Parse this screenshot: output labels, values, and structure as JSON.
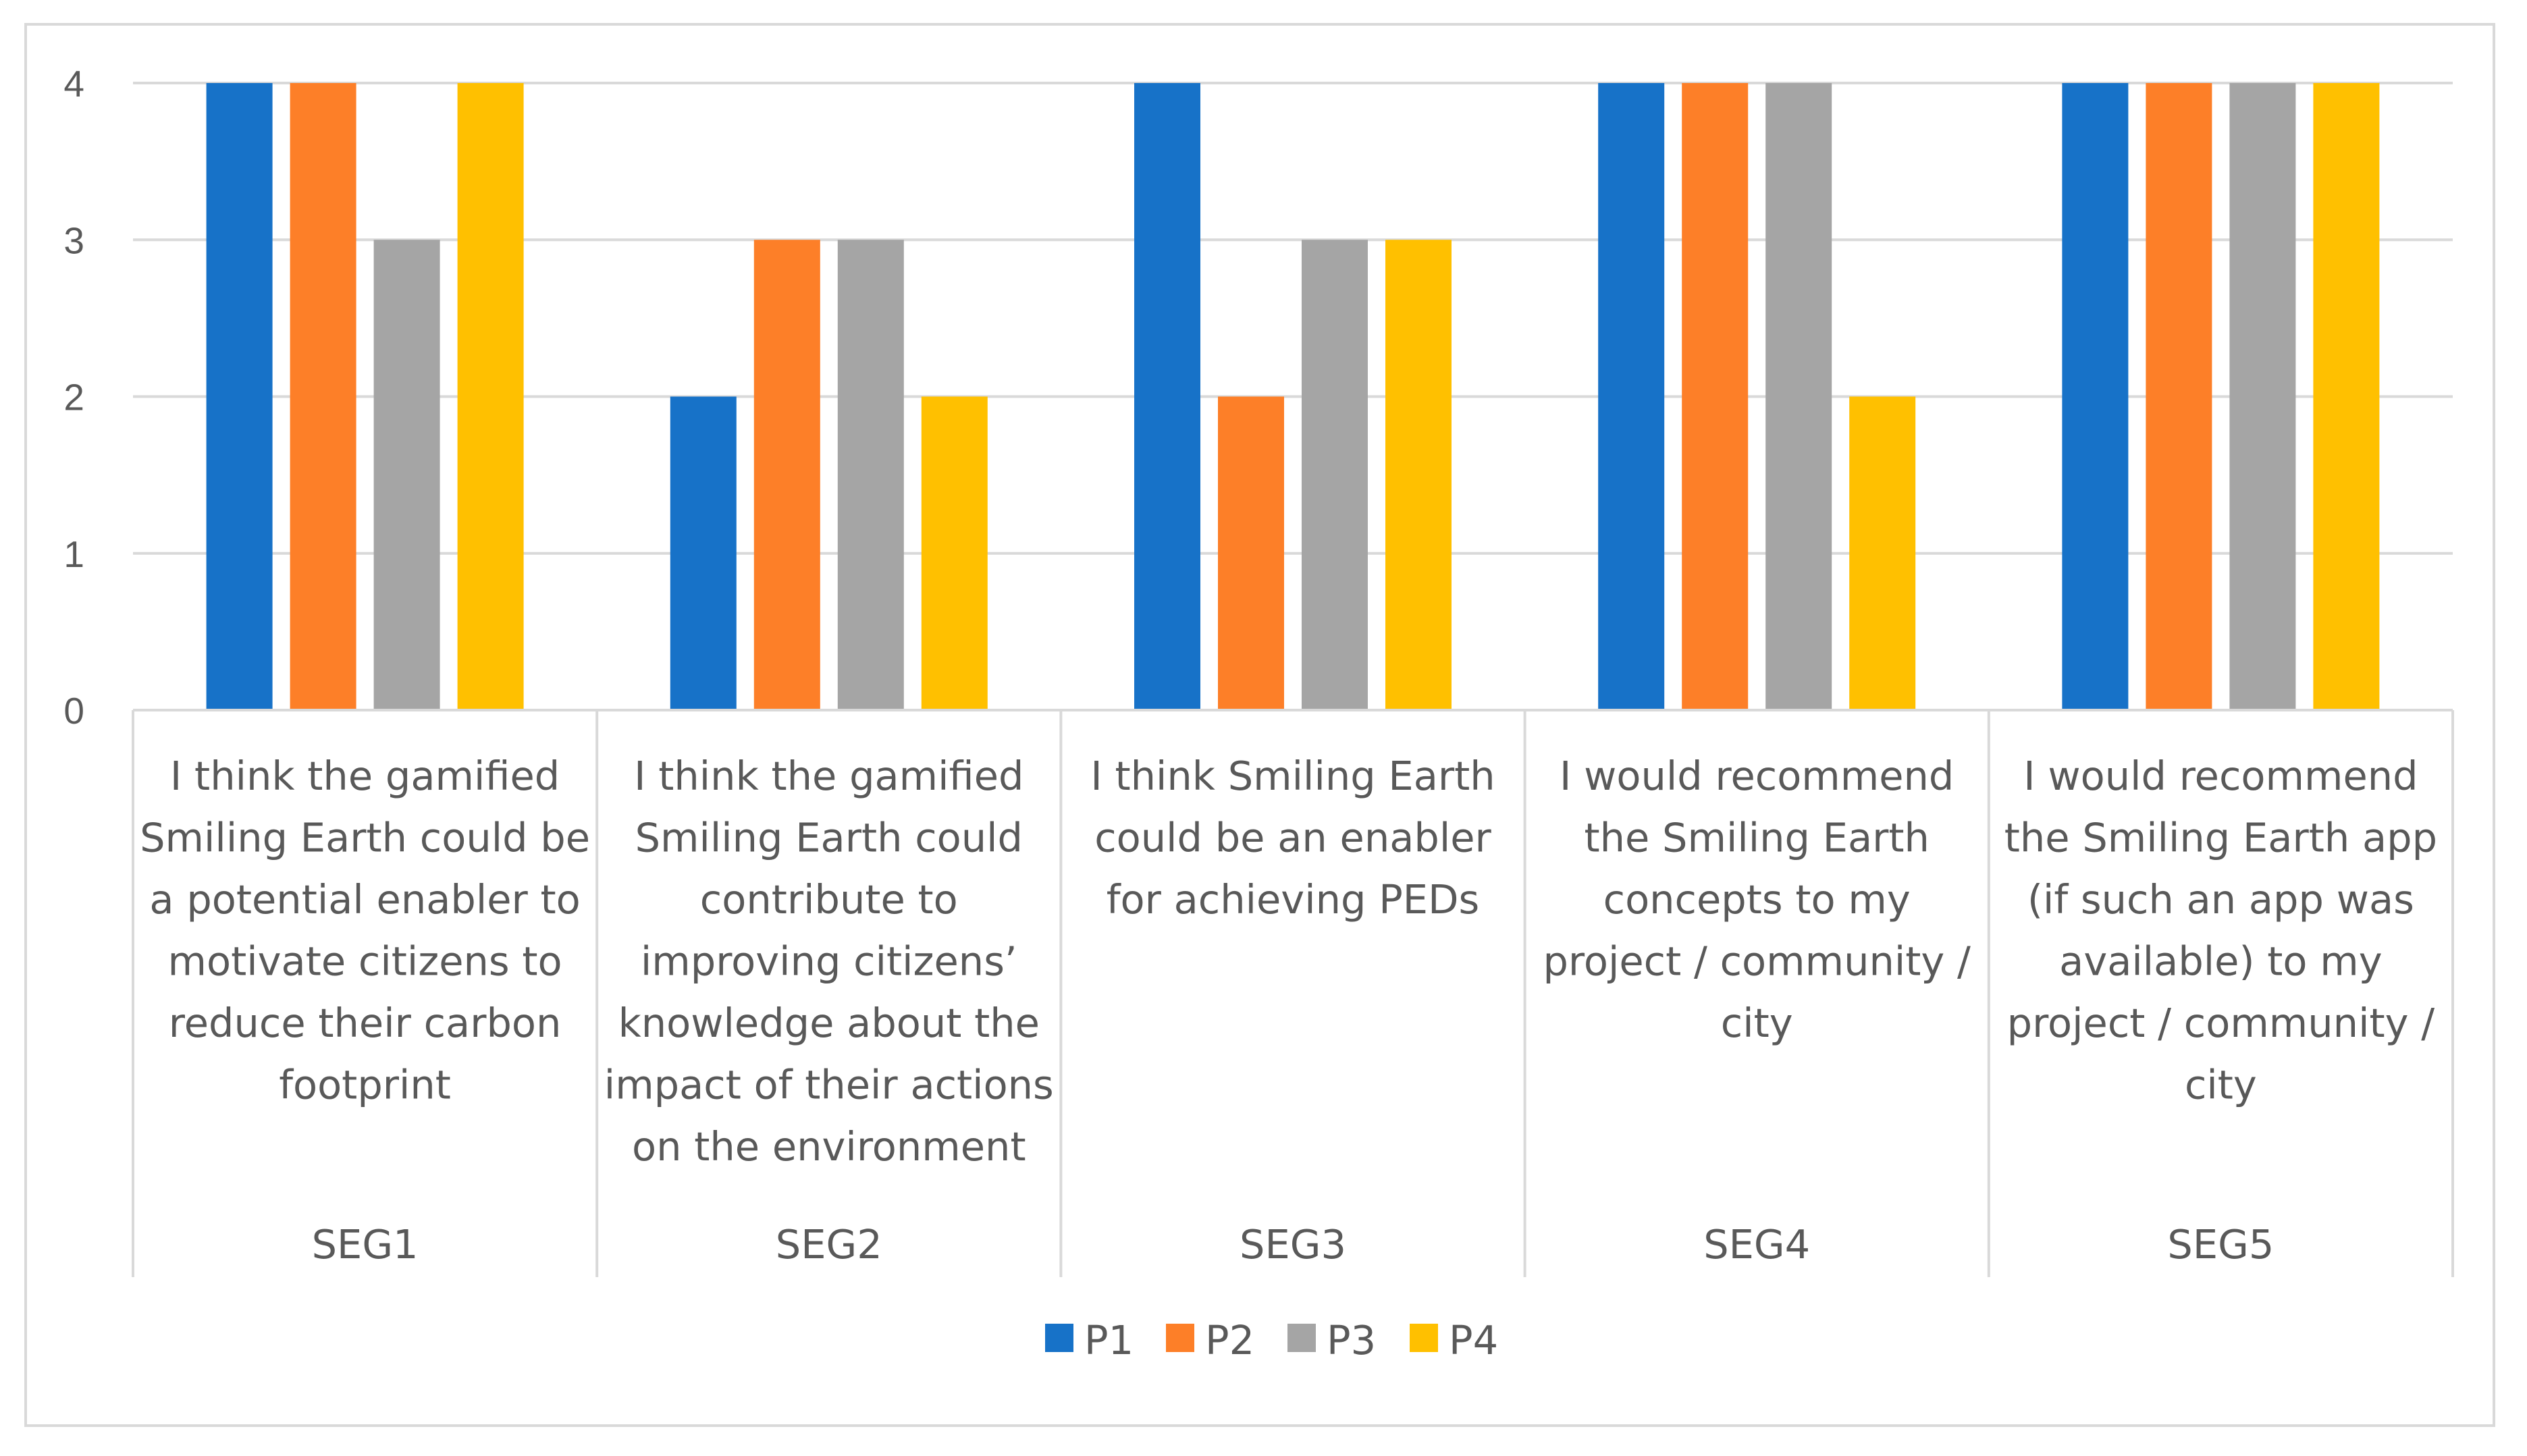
{
  "chart_data": {
    "type": "bar",
    "title": "",
    "xlabel": "",
    "ylabel": "",
    "ylim": [
      0,
      4
    ],
    "yticks": [
      "0",
      "1",
      "2",
      "3",
      "4"
    ],
    "grid": true,
    "legend_position": "bottom",
    "categories": [
      {
        "group": "SEG1",
        "lines": [
          "I think the gamified",
          "Smiling Earth could be",
          "a potential enabler to",
          "motivate citizens to",
          "reduce their carbon",
          "footprint"
        ]
      },
      {
        "group": "SEG2",
        "lines": [
          "I think the gamified",
          "Smiling Earth could",
          "contribute to",
          "improving citizens’",
          "knowledge about the",
          "impact of their actions",
          "on the environment"
        ]
      },
      {
        "group": "SEG3",
        "lines": [
          "I think Smiling Earth",
          "could be an enabler",
          "for achieving PEDs"
        ]
      },
      {
        "group": "SEG4",
        "lines": [
          "I would recommend",
          "the Smiling Earth",
          "concepts to my",
          "project / community /",
          "city"
        ]
      },
      {
        "group": "SEG5",
        "lines": [
          "I would recommend",
          "the Smiling Earth app",
          "(if such an app was",
          "available) to my",
          "project / community /",
          "city"
        ]
      }
    ],
    "series": [
      {
        "name": "P1",
        "color": "#1772c8",
        "values": [
          4,
          2,
          4,
          4,
          4
        ]
      },
      {
        "name": "P2",
        "color": "#fd7f28",
        "values": [
          4,
          3,
          2,
          4,
          4
        ]
      },
      {
        "name": "P3",
        "color": "#a5a5a5",
        "values": [
          3,
          3,
          3,
          4,
          4
        ]
      },
      {
        "name": "P4",
        "color": "#ffc000",
        "values": [
          4,
          2,
          3,
          2,
          4
        ]
      }
    ]
  }
}
